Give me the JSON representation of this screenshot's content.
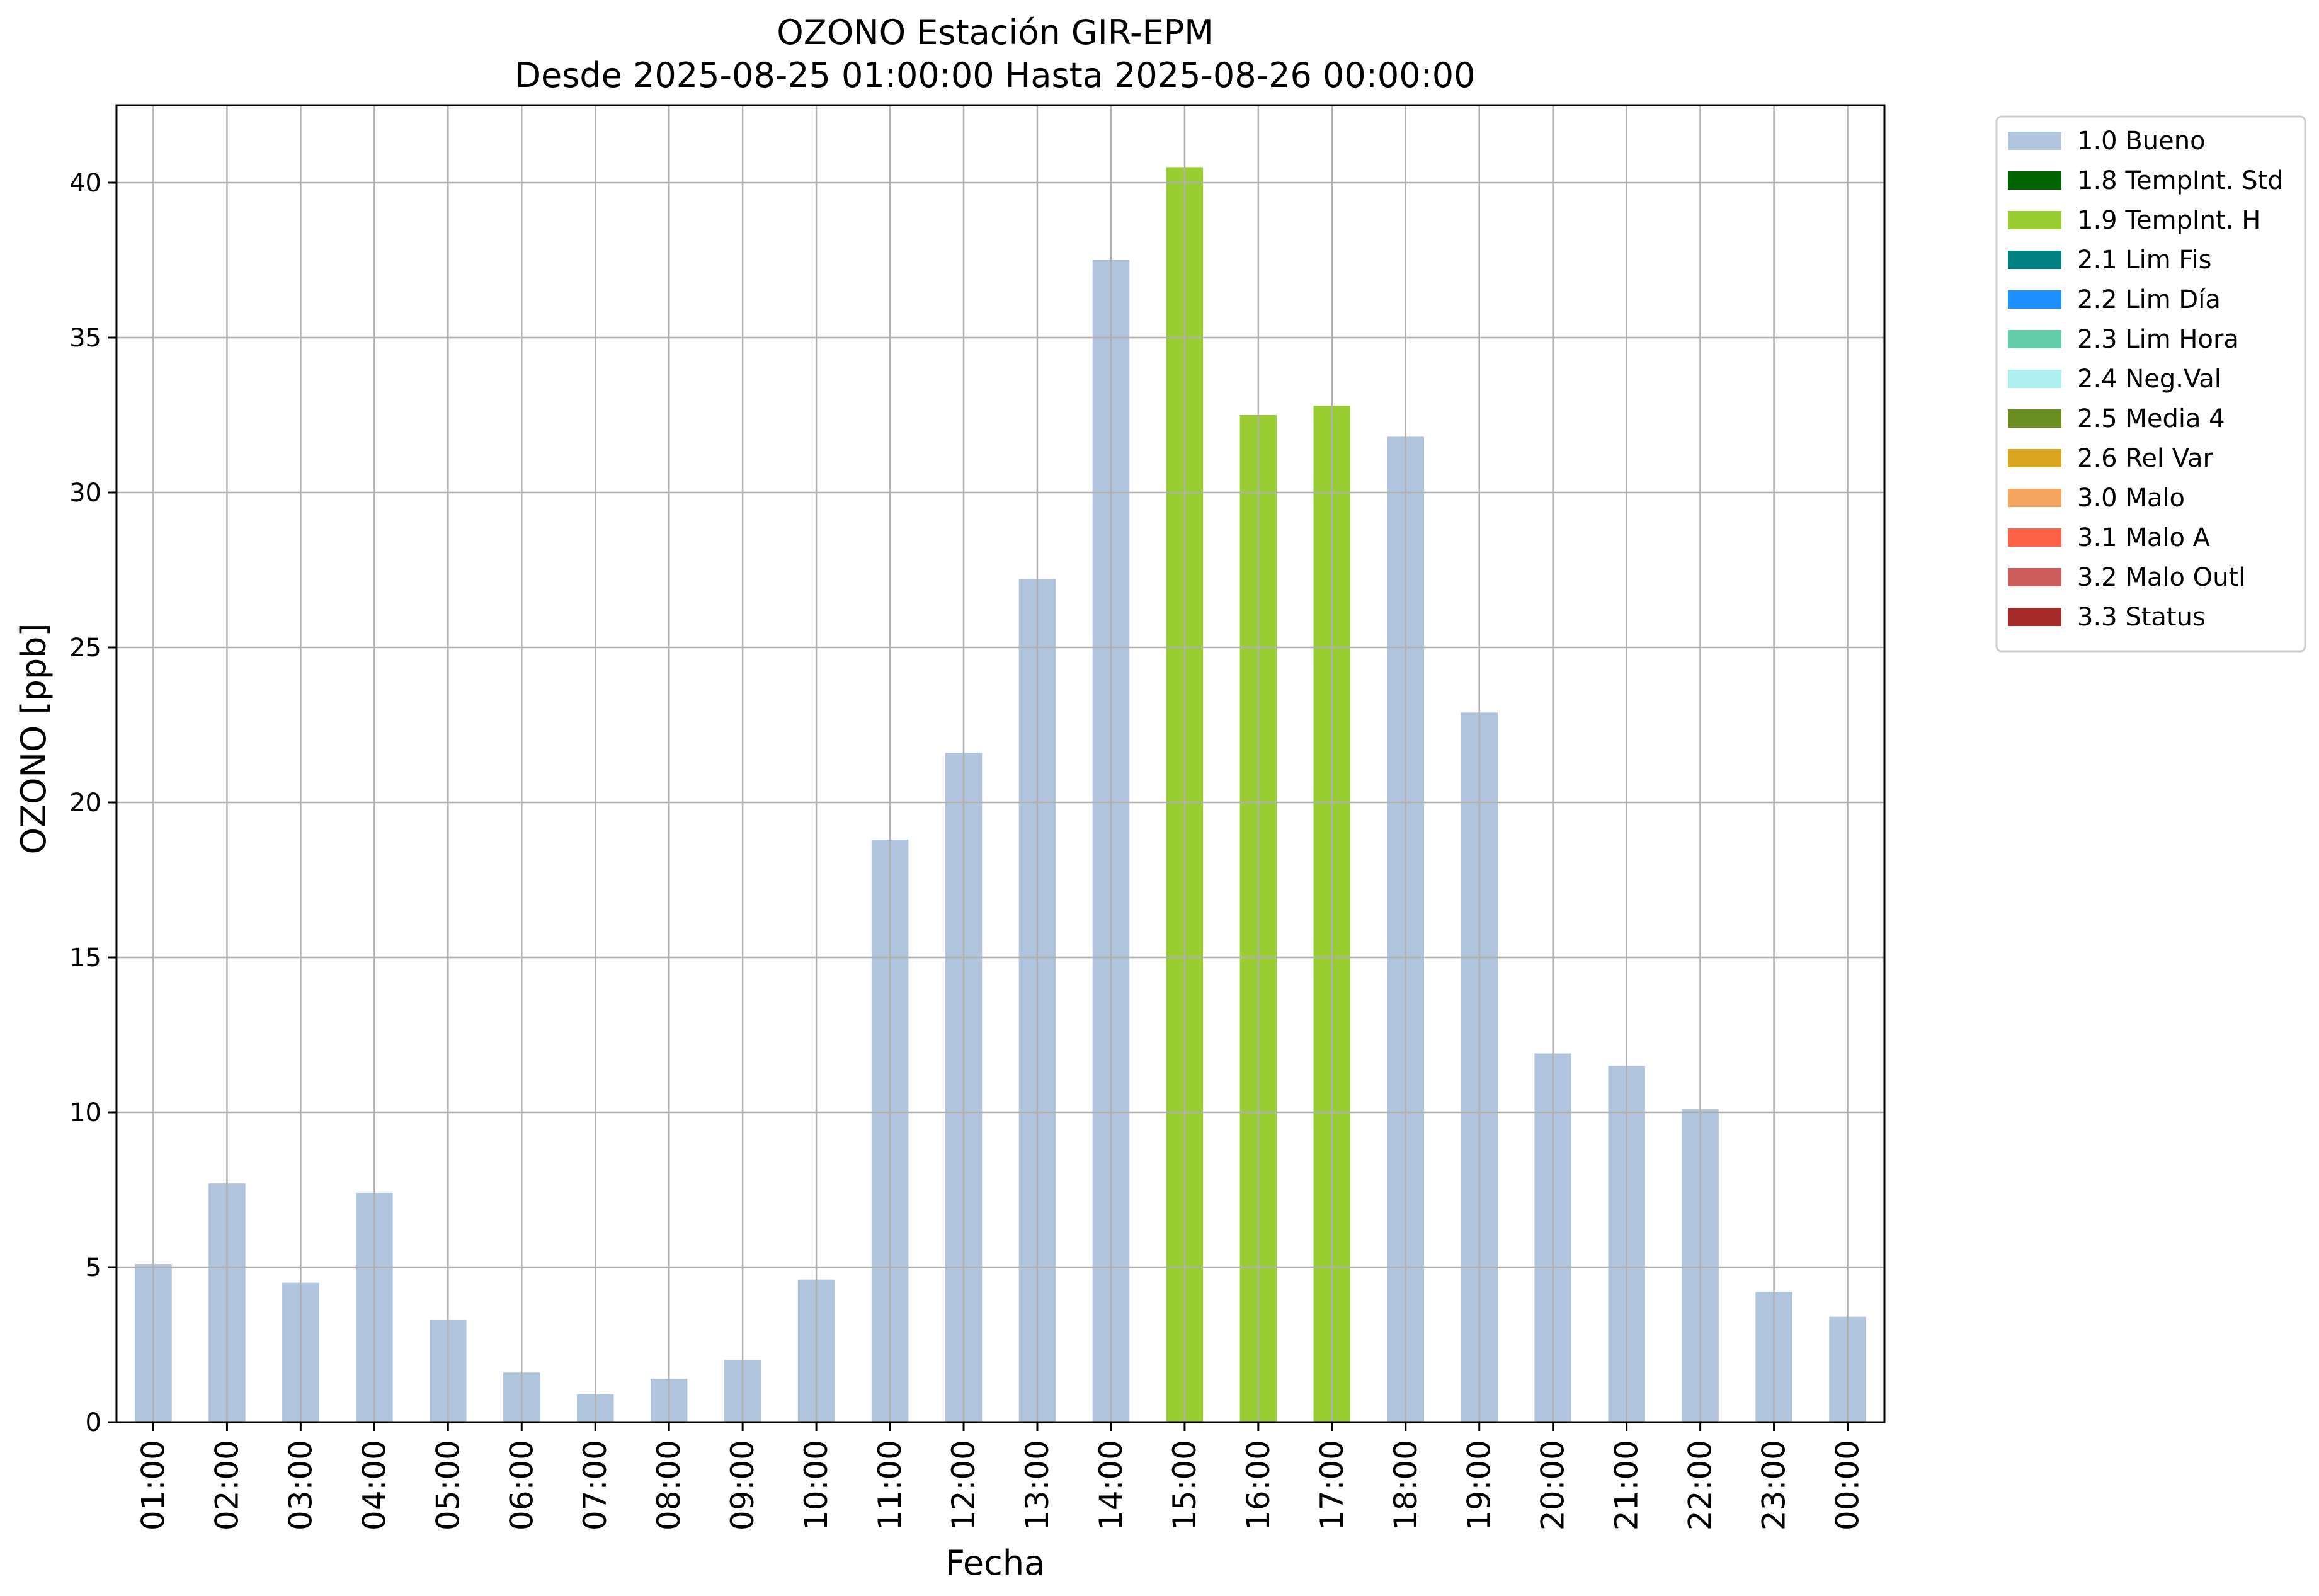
{
  "chart_data": {
    "type": "bar",
    "title": "OZONO Estación GIR-EPM",
    "subtitle": "Desde 2025-08-25 01:00:00 Hasta 2025-08-26 00:00:00",
    "xlabel": "Fecha",
    "ylabel": "OZONO [ppb]",
    "ylim": [
      0,
      42.5
    ],
    "yticks": [
      0,
      5,
      10,
      15,
      20,
      25,
      30,
      35,
      40
    ],
    "grid": true,
    "legend_position": "outside-top-right",
    "categories": [
      "01:00",
      "02:00",
      "03:00",
      "04:00",
      "05:00",
      "06:00",
      "07:00",
      "08:00",
      "09:00",
      "10:00",
      "11:00",
      "12:00",
      "13:00",
      "14:00",
      "15:00",
      "16:00",
      "17:00",
      "18:00",
      "19:00",
      "20:00",
      "21:00",
      "22:00",
      "23:00",
      "00:00"
    ],
    "values": [
      5.1,
      7.7,
      4.5,
      7.4,
      3.3,
      1.6,
      0.9,
      1.4,
      2.0,
      4.6,
      18.8,
      21.6,
      27.2,
      37.5,
      40.5,
      32.5,
      32.8,
      31.8,
      22.9,
      11.9,
      11.5,
      10.1,
      4.2,
      3.4
    ],
    "bar_flags": [
      "1.0 Bueno",
      "1.0 Bueno",
      "1.0 Bueno",
      "1.0 Bueno",
      "1.0 Bueno",
      "1.0 Bueno",
      "1.0 Bueno",
      "1.0 Bueno",
      "1.0 Bueno",
      "1.0 Bueno",
      "1.0 Bueno",
      "1.0 Bueno",
      "1.0 Bueno",
      "1.0 Bueno",
      "1.9 TempInt. H",
      "1.9 TempInt. H",
      "1.9 TempInt. H",
      "1.0 Bueno",
      "1.0 Bueno",
      "1.0 Bueno",
      "1.0 Bueno",
      "1.0 Bueno",
      "1.0 Bueno",
      "1.0 Bueno"
    ],
    "legend": [
      {
        "name": "1.0 Bueno",
        "color": "#b0c4de"
      },
      {
        "name": "1.8 TempInt. Std",
        "color": "#006400"
      },
      {
        "name": "1.9 TempInt. H",
        "color": "#9acd32"
      },
      {
        "name": "2.1 Lim Fis",
        "color": "#008080"
      },
      {
        "name": "2.2 Lim Día",
        "color": "#1e90ff"
      },
      {
        "name": "2.3 Lim Hora",
        "color": "#66cdaa"
      },
      {
        "name": "2.4 Neg.Val",
        "color": "#afeeee"
      },
      {
        "name": "2.5 Media 4",
        "color": "#6b8e23"
      },
      {
        "name": "2.6 Rel Var",
        "color": "#daa520"
      },
      {
        "name": "3.0 Malo",
        "color": "#f4a460"
      },
      {
        "name": "3.1 Malo A",
        "color": "#ff6347"
      },
      {
        "name": "3.2 Malo Outl",
        "color": "#cd5c5c"
      },
      {
        "name": "3.3 Status",
        "color": "#a52a2a"
      }
    ]
  }
}
